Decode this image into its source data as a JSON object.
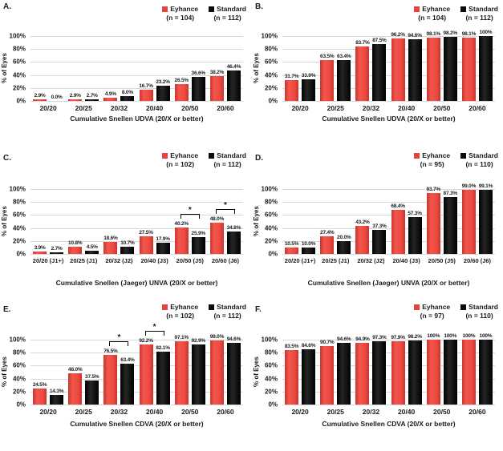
{
  "page": {
    "background": "#ffffff"
  },
  "chart_data": [
    {
      "panel_letter": "A.",
      "type": "bar",
      "xlabel": "Cumulative Snellen UDVA (20/X or better)",
      "ylabel": "% of Eyes",
      "ylim": [
        0,
        100
      ],
      "yticks": [
        "0%",
        "20%",
        "40%",
        "60%",
        "80%",
        "100%"
      ],
      "grid": true,
      "legend_position": "top-right",
      "categories": [
        "20/20",
        "20/25",
        "20/32",
        "20/40",
        "20/50",
        "20/60"
      ],
      "series": [
        {
          "name": "Eyhance",
          "n_label": "(n = 104)",
          "color": "#e8423b",
          "values": [
            2.9,
            2.9,
            4.9,
            16.7,
            26.5,
            38.2
          ]
        },
        {
          "name": "Standard",
          "n_label": "(n = 112)",
          "color": "#0a0a0a",
          "values": [
            0.0,
            2.7,
            8.0,
            23.2,
            36.6,
            46.4
          ]
        }
      ],
      "significance": []
    },
    {
      "panel_letter": "B.",
      "type": "bar",
      "xlabel": "Cumulative Snellen UDVA (20/X or better)",
      "ylabel": "% of Eyes",
      "ylim": [
        0,
        100
      ],
      "yticks": [
        "0%",
        "20%",
        "40%",
        "60%",
        "80%",
        "100%"
      ],
      "grid": true,
      "legend_position": "top-right",
      "categories": [
        "20/20",
        "20/25",
        "20/32",
        "20/40",
        "20/50",
        "20/60"
      ],
      "series": [
        {
          "name": "Eyhance",
          "n_label": "(n = 104)",
          "color": "#e8423b",
          "values": [
            31.7,
            63.5,
            83.7,
            96.2,
            98.1,
            98.1
          ]
        },
        {
          "name": "Standard",
          "n_label": "(n = 112)",
          "color": "#0a0a0a",
          "values": [
            33.9,
            63.4,
            87.5,
            94.6,
            98.2,
            100
          ]
        }
      ],
      "significance": []
    },
    {
      "panel_letter": "C.",
      "type": "bar",
      "xlabel": "Cumulative Snellen (Jaeger) UNVA (20/X or better)",
      "ylabel": "% of Eyes",
      "ylim": [
        0,
        100
      ],
      "yticks": [
        "0%",
        "20%",
        "40%",
        "60%",
        "80%",
        "100%"
      ],
      "grid": true,
      "legend_position": "top-right",
      "categories": [
        "20/20 (J1+)",
        "20/25 (J1)",
        "20/32 (J2)",
        "20/40 (J3)",
        "20/50 (J5)",
        "20/60 (J6)"
      ],
      "series": [
        {
          "name": "Eyhance",
          "n_label": "(n = 102)",
          "color": "#e8423b",
          "values": [
            3.9,
            10.8,
            18.6,
            27.5,
            40.2,
            48.0
          ]
        },
        {
          "name": "Standard",
          "n_label": "(n = 112)",
          "color": "#0a0a0a",
          "values": [
            2.7,
            4.5,
            10.7,
            17.9,
            25.9,
            34.8
          ]
        }
      ],
      "significance": [
        {
          "category_index": 4,
          "label": "*"
        },
        {
          "category_index": 5,
          "label": "*"
        }
      ]
    },
    {
      "panel_letter": "D.",
      "type": "bar",
      "xlabel": "Cumulative Snellen (Jaeger) UNVA (20/X or better)",
      "ylabel": "% of Eyes",
      "ylim": [
        0,
        100
      ],
      "yticks": [
        "0%",
        "20%",
        "40%",
        "60%",
        "80%",
        "100%"
      ],
      "grid": true,
      "legend_position": "top-right",
      "categories": [
        "20/20 (J1+)",
        "20/25 (J1)",
        "20/32 (J2)",
        "20/40 (J3)",
        "20/50 (J5)",
        "20/60 (J6)"
      ],
      "series": [
        {
          "name": "Eyhance",
          "n_label": "(n = 95)",
          "color": "#e8423b",
          "values": [
            10.5,
            27.4,
            43.2,
            68.4,
            93.7,
            99.0
          ]
        },
        {
          "name": "Standard",
          "n_label": "(n = 110)",
          "color": "#0a0a0a",
          "values": [
            10.0,
            20.0,
            37.3,
            57.3,
            87.3,
            99.1
          ]
        }
      ],
      "significance": []
    },
    {
      "panel_letter": "E.",
      "type": "bar",
      "xlabel": "Cumulative Snellen CDVA (20/X or better)",
      "ylabel": "% of Eyes",
      "ylim": [
        0,
        100
      ],
      "yticks": [
        "0%",
        "20%",
        "40%",
        "60%",
        "80%",
        "100%"
      ],
      "grid": true,
      "legend_position": "top-right",
      "categories": [
        "20/20",
        "20/25",
        "20/32",
        "20/40",
        "20/50",
        "20/60"
      ],
      "series": [
        {
          "name": "Eyhance",
          "n_label": "(n = 102)",
          "color": "#e8423b",
          "values": [
            24.5,
            48.0,
            76.5,
            92.2,
            97.1,
            99.0
          ]
        },
        {
          "name": "Standard",
          "n_label": "(n = 112)",
          "color": "#0a0a0a",
          "values": [
            14.3,
            37.5,
            63.4,
            82.1,
            92.9,
            94.6
          ]
        }
      ],
      "significance": [
        {
          "category_index": 2,
          "label": "*"
        },
        {
          "category_index": 3,
          "label": "*"
        }
      ]
    },
    {
      "panel_letter": "F.",
      "type": "bar",
      "xlabel": "Cumulative Snellen CDVA (20/X or better)",
      "ylabel": "% of Eyes",
      "ylim": [
        0,
        100
      ],
      "yticks": [
        "0%",
        "20%",
        "40%",
        "60%",
        "80%",
        "100%"
      ],
      "grid": true,
      "legend_position": "top-right",
      "categories": [
        "20/20",
        "20/25",
        "20/32",
        "20/40",
        "20/50",
        "20/60"
      ],
      "series": [
        {
          "name": "Eyhance",
          "n_label": "(n = 97)",
          "color": "#e8423b",
          "values": [
            83.5,
            90.7,
            94.9,
            97.9,
            100,
            100
          ]
        },
        {
          "name": "Standard",
          "n_label": "(n = 110)",
          "color": "#0a0a0a",
          "values": [
            84.6,
            94.6,
            97.3,
            98.2,
            100,
            100
          ]
        }
      ],
      "significance": []
    }
  ]
}
